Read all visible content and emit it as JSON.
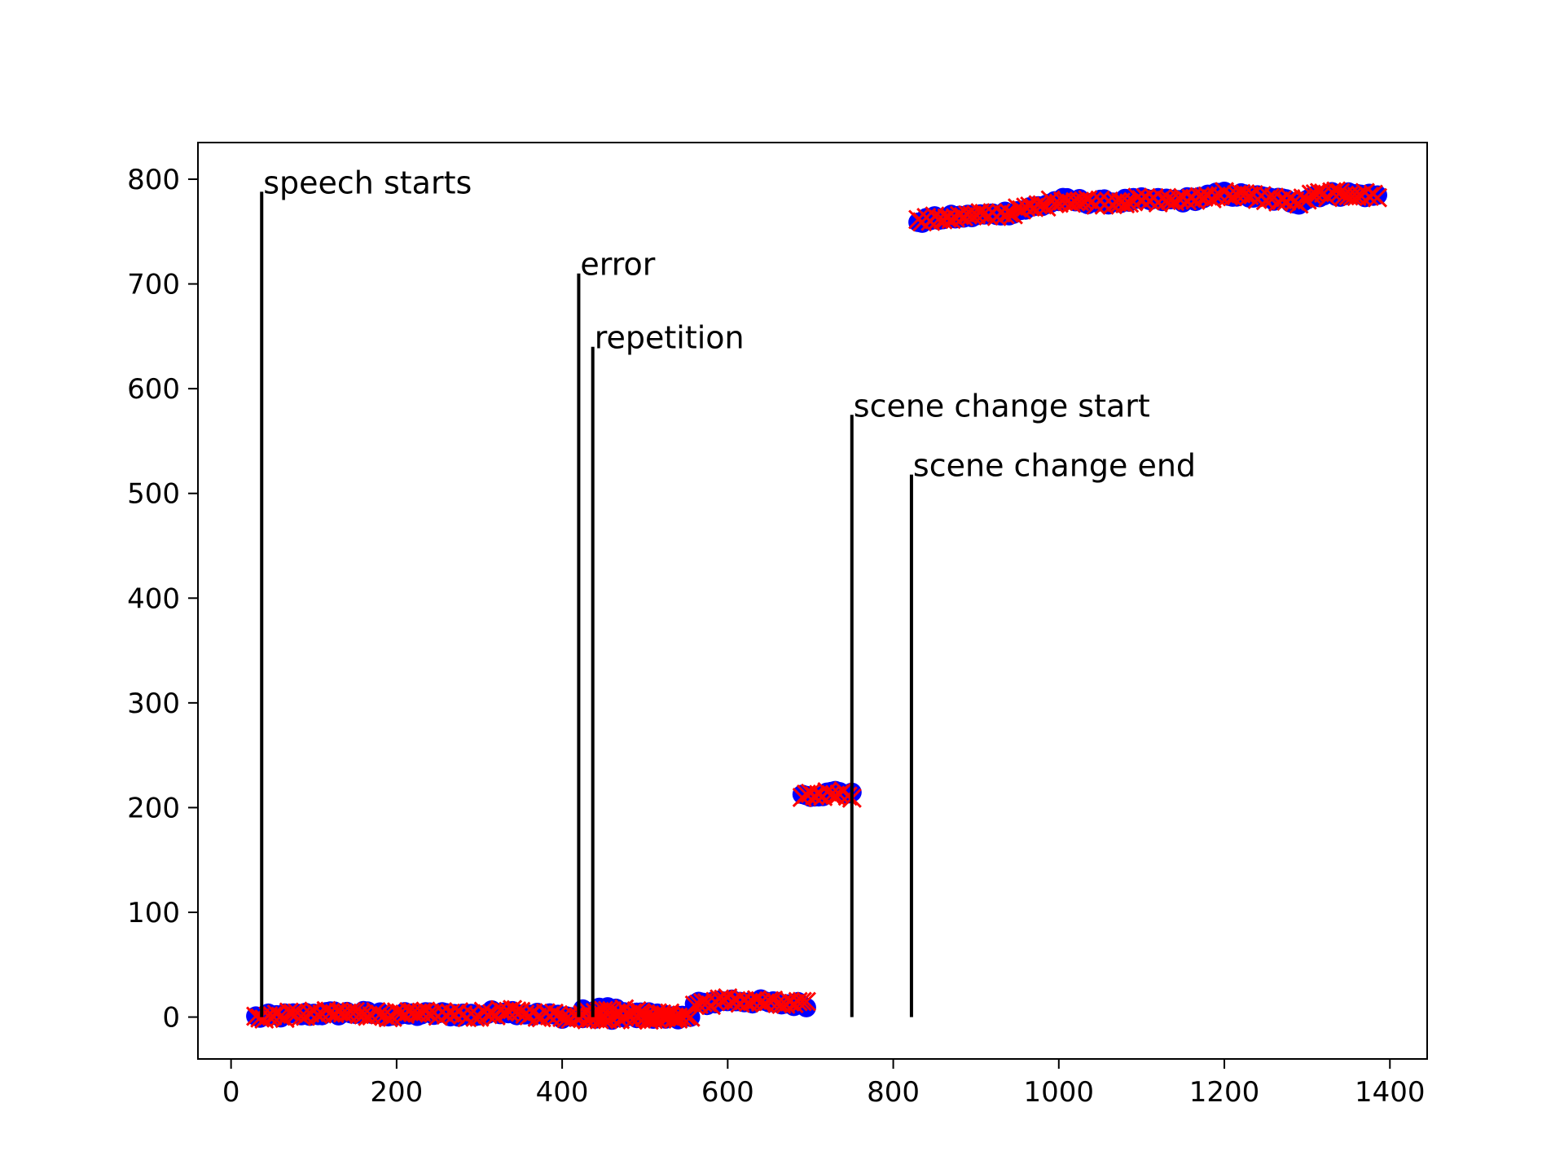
{
  "chart_data": {
    "type": "scatter",
    "title": "",
    "xlabel": "",
    "ylabel": "",
    "xlim": [
      -40,
      1445
    ],
    "ylim": [
      -40,
      835
    ],
    "x_ticks": [
      0,
      200,
      400,
      600,
      800,
      1000,
      1200,
      1400
    ],
    "y_ticks": [
      0,
      100,
      200,
      300,
      400,
      500,
      600,
      700,
      800
    ],
    "grid": false,
    "legend": "none",
    "series": [
      {
        "marker": "circle",
        "color": "#0000ff",
        "segments": [
          {
            "x_start": 30,
            "x_end": 540,
            "step": 5,
            "points": [
              [
                30,
                0
              ],
              [
                100,
                3
              ],
              [
                150,
                4
              ],
              [
                200,
                2
              ],
              [
                250,
                3
              ],
              [
                300,
                2
              ],
              [
                330,
                6
              ],
              [
                360,
                3
              ],
              [
                400,
                1
              ],
              [
                420,
                0
              ]
            ]
          },
          {
            "x_start": 425,
            "x_end": 555,
            "step": 5,
            "points": [
              [
                425,
                5
              ],
              [
                450,
                8
              ],
              [
                470,
                6
              ],
              [
                500,
                2
              ],
              [
                530,
                1
              ],
              [
                555,
                0
              ]
            ]
          },
          {
            "x_start": 560,
            "x_end": 695,
            "step": 5,
            "points": [
              [
                545,
                10
              ],
              [
                580,
                14
              ],
              [
                600,
                16
              ],
              [
                630,
                15
              ],
              [
                660,
                13
              ],
              [
                695,
                12
              ]
            ]
          },
          {
            "x_start": 690,
            "x_end": 750,
            "step": 5,
            "points": [
              [
                690,
                212
              ],
              [
                720,
                213
              ],
              [
                735,
                216
              ],
              [
                750,
                212
              ]
            ]
          },
          {
            "x_start": 830,
            "x_end": 1385,
            "step": 5,
            "points": [
              [
                830,
                760
              ],
              [
                860,
                763
              ],
              [
                900,
                765
              ],
              [
                940,
                768
              ],
              [
                980,
                775
              ],
              [
                1000,
                780
              ],
              [
                1050,
                778
              ],
              [
                1100,
                780
              ],
              [
                1150,
                780
              ],
              [
                1200,
                786
              ],
              [
                1250,
                782
              ],
              [
                1290,
                778
              ],
              [
                1310,
                785
              ],
              [
                1350,
                786
              ],
              [
                1385,
                784
              ]
            ]
          }
        ]
      },
      {
        "marker": "x",
        "color": "#ff0000",
        "segments": [
          {
            "x_start": 30,
            "x_end": 540,
            "step": 5,
            "points": [
              [
                30,
                0
              ],
              [
                100,
                3
              ],
              [
                150,
                4
              ],
              [
                200,
                2
              ],
              [
                250,
                3
              ],
              [
                300,
                2
              ],
              [
                330,
                5
              ],
              [
                360,
                3
              ],
              [
                400,
                1
              ],
              [
                420,
                0
              ]
            ]
          },
          {
            "x_start": 425,
            "x_end": 555,
            "step": 5,
            "points": [
              [
                425,
                4
              ],
              [
                450,
                7
              ],
              [
                470,
                6
              ],
              [
                500,
                2
              ],
              [
                530,
                1
              ],
              [
                555,
                0
              ]
            ]
          },
          {
            "x_start": 560,
            "x_end": 695,
            "step": 5,
            "points": [
              [
                545,
                10
              ],
              [
                580,
                14
              ],
              [
                600,
                16
              ],
              [
                630,
                15
              ],
              [
                660,
                13
              ],
              [
                695,
                12
              ]
            ]
          },
          {
            "x_start": 690,
            "x_end": 750,
            "step": 5,
            "points": [
              [
                690,
                212
              ],
              [
                720,
                213
              ],
              [
                735,
                215
              ],
              [
                750,
                212
              ]
            ]
          },
          {
            "x_start": 830,
            "x_end": 1385,
            "step": 5,
            "points": [
              [
                830,
                760
              ],
              [
                860,
                763
              ],
              [
                900,
                765
              ],
              [
                940,
                768
              ],
              [
                980,
                775
              ],
              [
                1000,
                780
              ],
              [
                1050,
                778
              ],
              [
                1100,
                780
              ],
              [
                1150,
                780
              ],
              [
                1200,
                786
              ],
              [
                1250,
                782
              ],
              [
                1290,
                778
              ],
              [
                1310,
                785
              ],
              [
                1350,
                786
              ],
              [
                1385,
                784
              ]
            ]
          }
        ]
      }
    ],
    "annotations": [
      {
        "label": "speech starts",
        "x": 37,
        "y_top": 788,
        "color": "#000000"
      },
      {
        "label": "error",
        "x": 420,
        "y_top": 710,
        "color": "#000000"
      },
      {
        "label": "repetition",
        "x": 437,
        "y_top": 640,
        "color": "#000000"
      },
      {
        "label": "scene change start",
        "x": 750,
        "y_top": 575,
        "color": "#000000"
      },
      {
        "label": "scene change end",
        "x": 822,
        "y_top": 518,
        "color": "#000000"
      }
    ]
  }
}
